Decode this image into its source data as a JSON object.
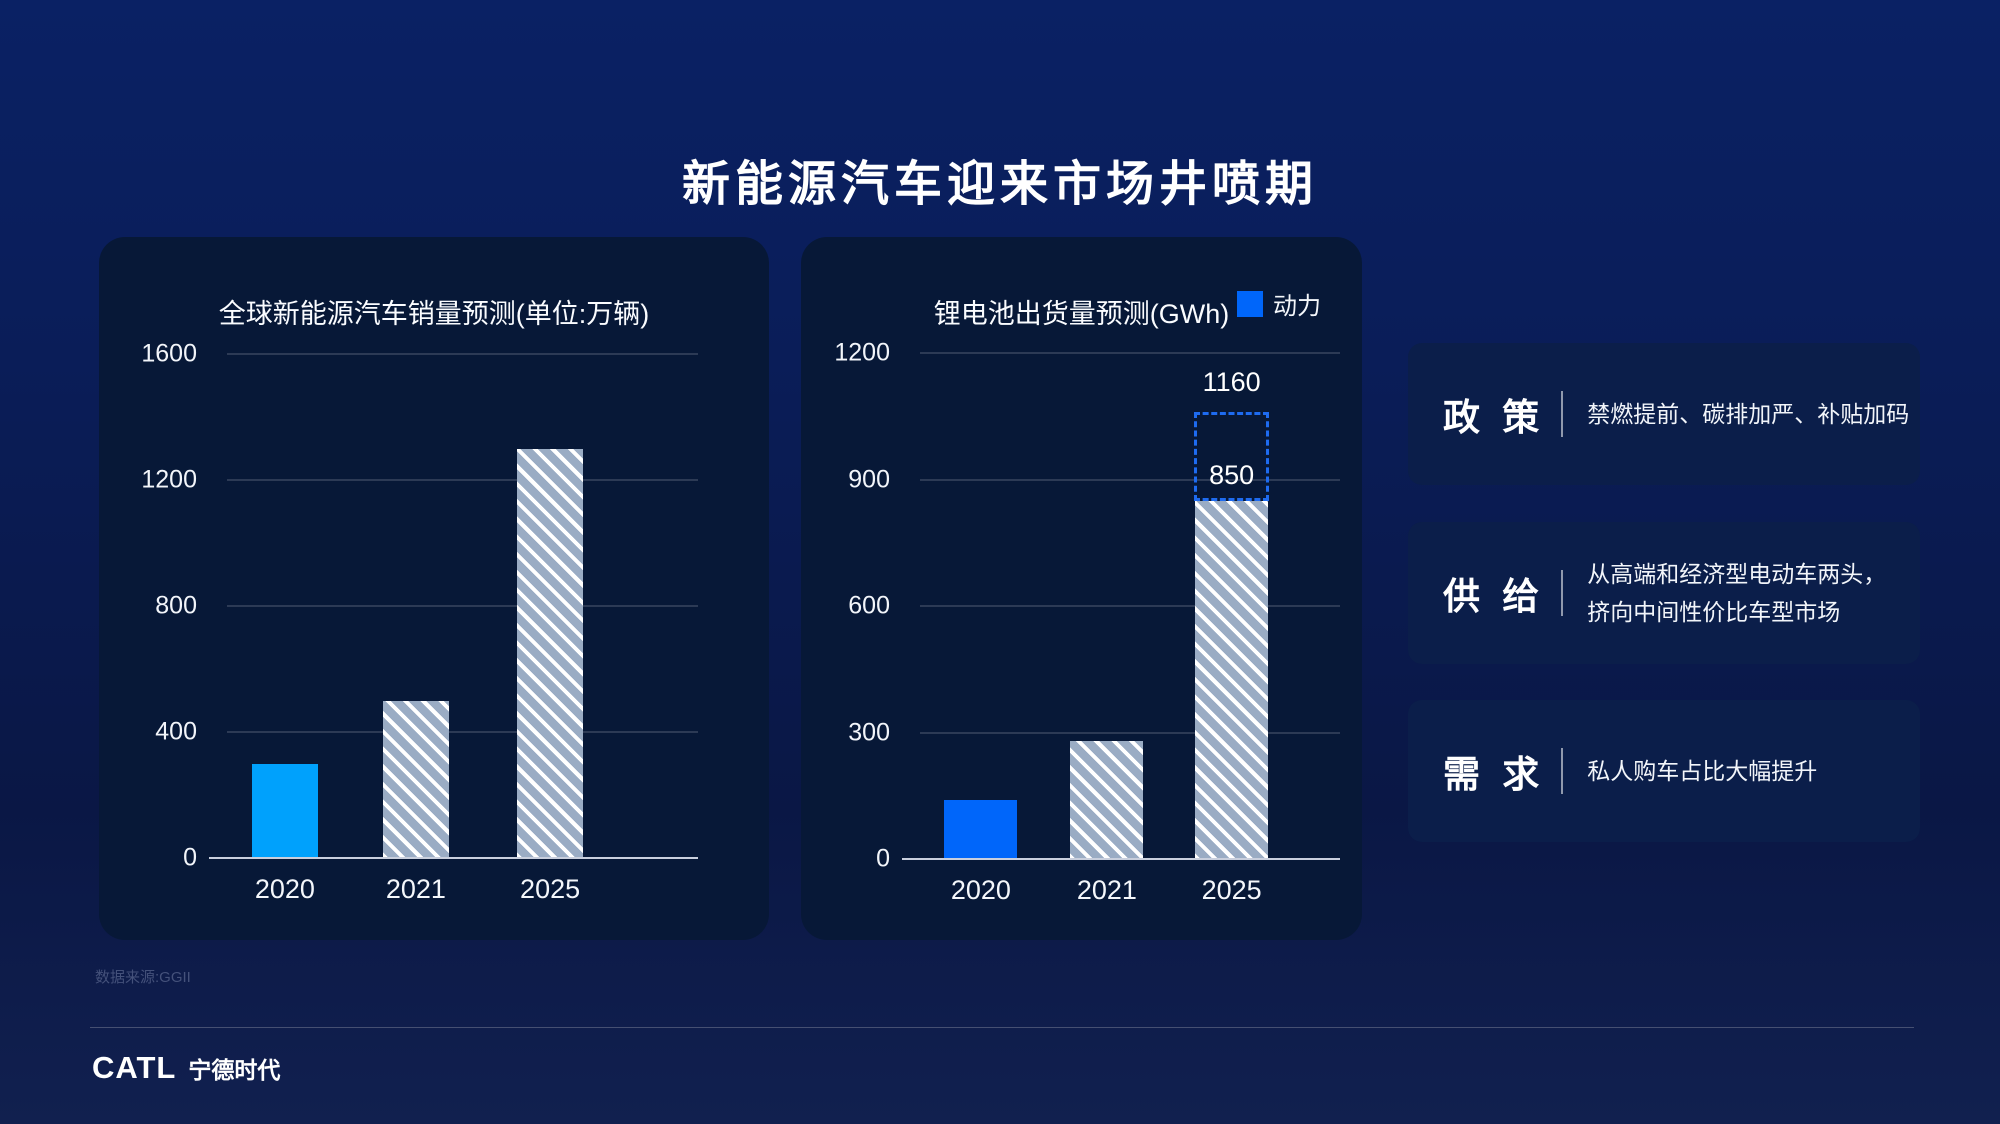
{
  "slide": {
    "title": "新能源汽车迎来市场井喷期",
    "source": "数据来源:GGII",
    "logo": {
      "catl": "CATL",
      "cn": "宁德时代"
    }
  },
  "chart_data": [
    {
      "type": "bar",
      "title": "全球新能源汽车销量预测(单位:万辆)",
      "categories": [
        "2020",
        "2021",
        "2025"
      ],
      "values": [
        300,
        500,
        1300
      ],
      "bar_styles": [
        "solid",
        "hatch",
        "hatch"
      ],
      "solid_color": "#00A1FC",
      "hatch_color": "#9AACC4",
      "ylim": [
        0,
        1600
      ],
      "yticks": [
        0,
        400,
        800,
        1200,
        1600
      ],
      "grid": true,
      "legend_position": "none"
    },
    {
      "type": "bar",
      "title": "锂电池出货量预测(GWh)",
      "legend": [
        {
          "label": "动力",
          "color": "#0066FA"
        }
      ],
      "categories": [
        "2020",
        "2021",
        "2025"
      ],
      "values": [
        140,
        280,
        850
      ],
      "bar_styles": [
        "solid",
        "hatch",
        "hatch"
      ],
      "solid_color": "#0066FA",
      "hatch_color": "#9AACC4",
      "projection": {
        "category": "2025",
        "from": 850,
        "to": 1160,
        "label_top": "1160",
        "label_inside": "850",
        "border_color": "#1E6BF0"
      },
      "ylim": [
        0,
        1200
      ],
      "yticks": [
        0,
        300,
        600,
        900,
        1200
      ],
      "grid": true,
      "legend_position": "top-right"
    }
  ],
  "info_boxes": [
    {
      "title": "政 策",
      "lines": [
        "禁燃提前、碳排加严、补贴加码"
      ]
    },
    {
      "title": "供 给",
      "lines": [
        "从高端和经济型电动车两头，",
        "挤向中间性价比车型市场"
      ]
    },
    {
      "title": "需 求",
      "lines": [
        "私人购车占比大幅提升"
      ]
    }
  ],
  "colors": {
    "background_top": "#0A2164",
    "background_bottom": "#11204F",
    "card_bg": "#071837",
    "info_box_bg": "#0B1E4A",
    "sky_blue_bar": "#00A1FC",
    "royal_blue_bar": "#0066FA",
    "hatch_gray": "#9AACC4",
    "dashed_outline": "#1E6BF0"
  }
}
